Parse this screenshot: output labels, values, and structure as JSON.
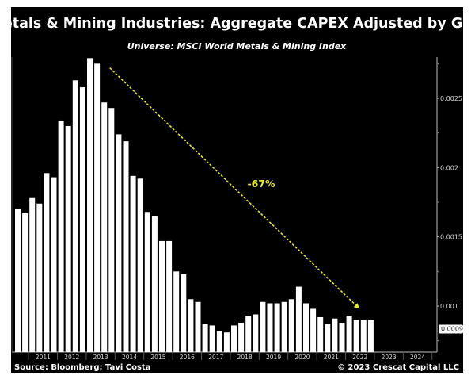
{
  "chart_data": {
    "type": "bar",
    "title": "Metals & Mining Industries: Aggregate CAPEX Adjusted by GDP",
    "subtitle": "Universe: MSCI World Metals & Mining Index",
    "xlabel": "",
    "ylabel": "",
    "y_axis_side": "right",
    "ylim": [
      0.000668,
      0.00285
    ],
    "y_ticks": [
      {
        "value": 0.001,
        "label": "0.001"
      },
      {
        "value": 0.0015,
        "label": "0.0015"
      },
      {
        "value": 0.002,
        "label": "0.002"
      },
      {
        "value": 0.0025,
        "label": "0.0025"
      }
    ],
    "y_minor_ticks": [
      0.00075,
      0.00125,
      0.00175,
      0.00225,
      0.00275
    ],
    "last_value_label": {
      "value": 0.0009,
      "label": "0.0009"
    },
    "x_year_labels": [
      "2011",
      "2012",
      "2013",
      "2014",
      "2015",
      "2016",
      "2017",
      "2018",
      "2019",
      "2020",
      "2021",
      "2022",
      "2023",
      "2024"
    ],
    "x_range": {
      "start": "2010 Q3",
      "end": "2024 Q4"
    },
    "grid": false,
    "legend": "none",
    "categories": [
      "2010 Q3",
      "2010 Q4",
      "2011 Q1",
      "2011 Q2",
      "2011 Q3",
      "2011 Q4",
      "2012 Q1",
      "2012 Q2",
      "2012 Q3",
      "2012 Q4",
      "2013 Q1",
      "2013 Q2",
      "2013 Q3",
      "2013 Q4",
      "2014 Q1",
      "2014 Q2",
      "2014 Q3",
      "2014 Q4",
      "2015 Q1",
      "2015 Q2",
      "2015 Q3",
      "2015 Q4",
      "2016 Q1",
      "2016 Q2",
      "2016 Q3",
      "2016 Q4",
      "2017 Q1",
      "2017 Q2",
      "2017 Q3",
      "2017 Q4",
      "2018 Q1",
      "2018 Q2",
      "2018 Q3",
      "2018 Q4",
      "2019 Q1",
      "2019 Q2",
      "2019 Q3",
      "2019 Q4",
      "2020 Q1",
      "2020 Q2",
      "2020 Q3",
      "2020 Q4",
      "2021 Q1",
      "2021 Q2",
      "2021 Q3",
      "2021 Q4",
      "2022 Q1",
      "2022 Q2",
      "2022 Q3",
      "2022 Q4"
    ],
    "series": [
      {
        "name": "Aggregate CAPEX / GDP",
        "color": "#ffffff",
        "values": [
          0.0017,
          0.00167,
          0.00178,
          0.00174,
          0.00196,
          0.00193,
          0.00234,
          0.0023,
          0.00263,
          0.00258,
          0.00279,
          0.00275,
          0.00247,
          0.00243,
          0.00224,
          0.00219,
          0.00194,
          0.00192,
          0.00168,
          0.00165,
          0.00147,
          0.00147,
          0.00125,
          0.00123,
          0.00105,
          0.00103,
          0.00087,
          0.00086,
          0.00082,
          0.00081,
          0.00086,
          0.00088,
          0.00093,
          0.00094,
          0.00103,
          0.00102,
          0.00102,
          0.00103,
          0.00105,
          0.00114,
          0.00102,
          0.00098,
          0.00092,
          0.00087,
          0.00091,
          0.00088,
          0.00093,
          0.0009,
          0.0009,
          0.0009
        ]
      }
    ],
    "annotations": [
      {
        "type": "dashed-arrow",
        "from": {
          "category": "2013 Q3",
          "value": 0.00272
        },
        "to": {
          "category": "2022 Q2",
          "value": 0.00098
        },
        "color": "#e6e62e",
        "label": "-67%"
      }
    ],
    "footer": {
      "source": "Source: Bloomberg; Tavi Costa",
      "copyright": "© 2023 Crescat Capital LLC"
    },
    "colors": {
      "background": "#000000",
      "bars": "#ffffff",
      "annotation": "#e6e62e",
      "axis": "#bfbfbf"
    }
  }
}
